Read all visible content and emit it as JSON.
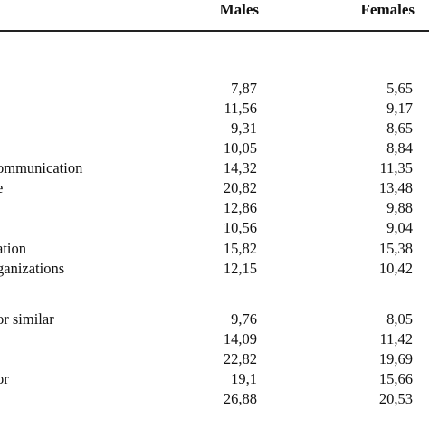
{
  "table": {
    "headers": {
      "males": "Males",
      "females": "Females"
    },
    "rows": [
      {
        "label": "",
        "males": "7,87",
        "females": "5,65"
      },
      {
        "label": "",
        "males": "11,56",
        "females": "9,17"
      },
      {
        "label": "",
        "males": "9,31",
        "females": "8,65"
      },
      {
        "label": "",
        "males": "10,05",
        "females": "8,84"
      },
      {
        "label": "ommunication",
        "males": "14,32",
        "females": "11,35"
      },
      {
        "label": "e",
        "males": "20,82",
        "females": "13,48"
      },
      {
        "label": "",
        "males": "12,86",
        "females": "9,88"
      },
      {
        "label": "",
        "males": "10,56",
        "females": "9,04"
      },
      {
        "label": "ation",
        "males": "15,82",
        "females": "15,38"
      },
      {
        "label": "ganizations",
        "males": "12,15",
        "females": "10,42"
      },
      {
        "label": "or similar",
        "males": "9,76",
        "females": "8,05"
      },
      {
        "label": "",
        "males": "14,09",
        "females": "11,42"
      },
      {
        "label": "",
        "males": "22,82",
        "females": "19,69"
      },
      {
        "label": "or",
        "males": "19,1",
        "females": "15,66"
      },
      {
        "label": "",
        "males": "26,88",
        "females": "20,53"
      }
    ]
  }
}
